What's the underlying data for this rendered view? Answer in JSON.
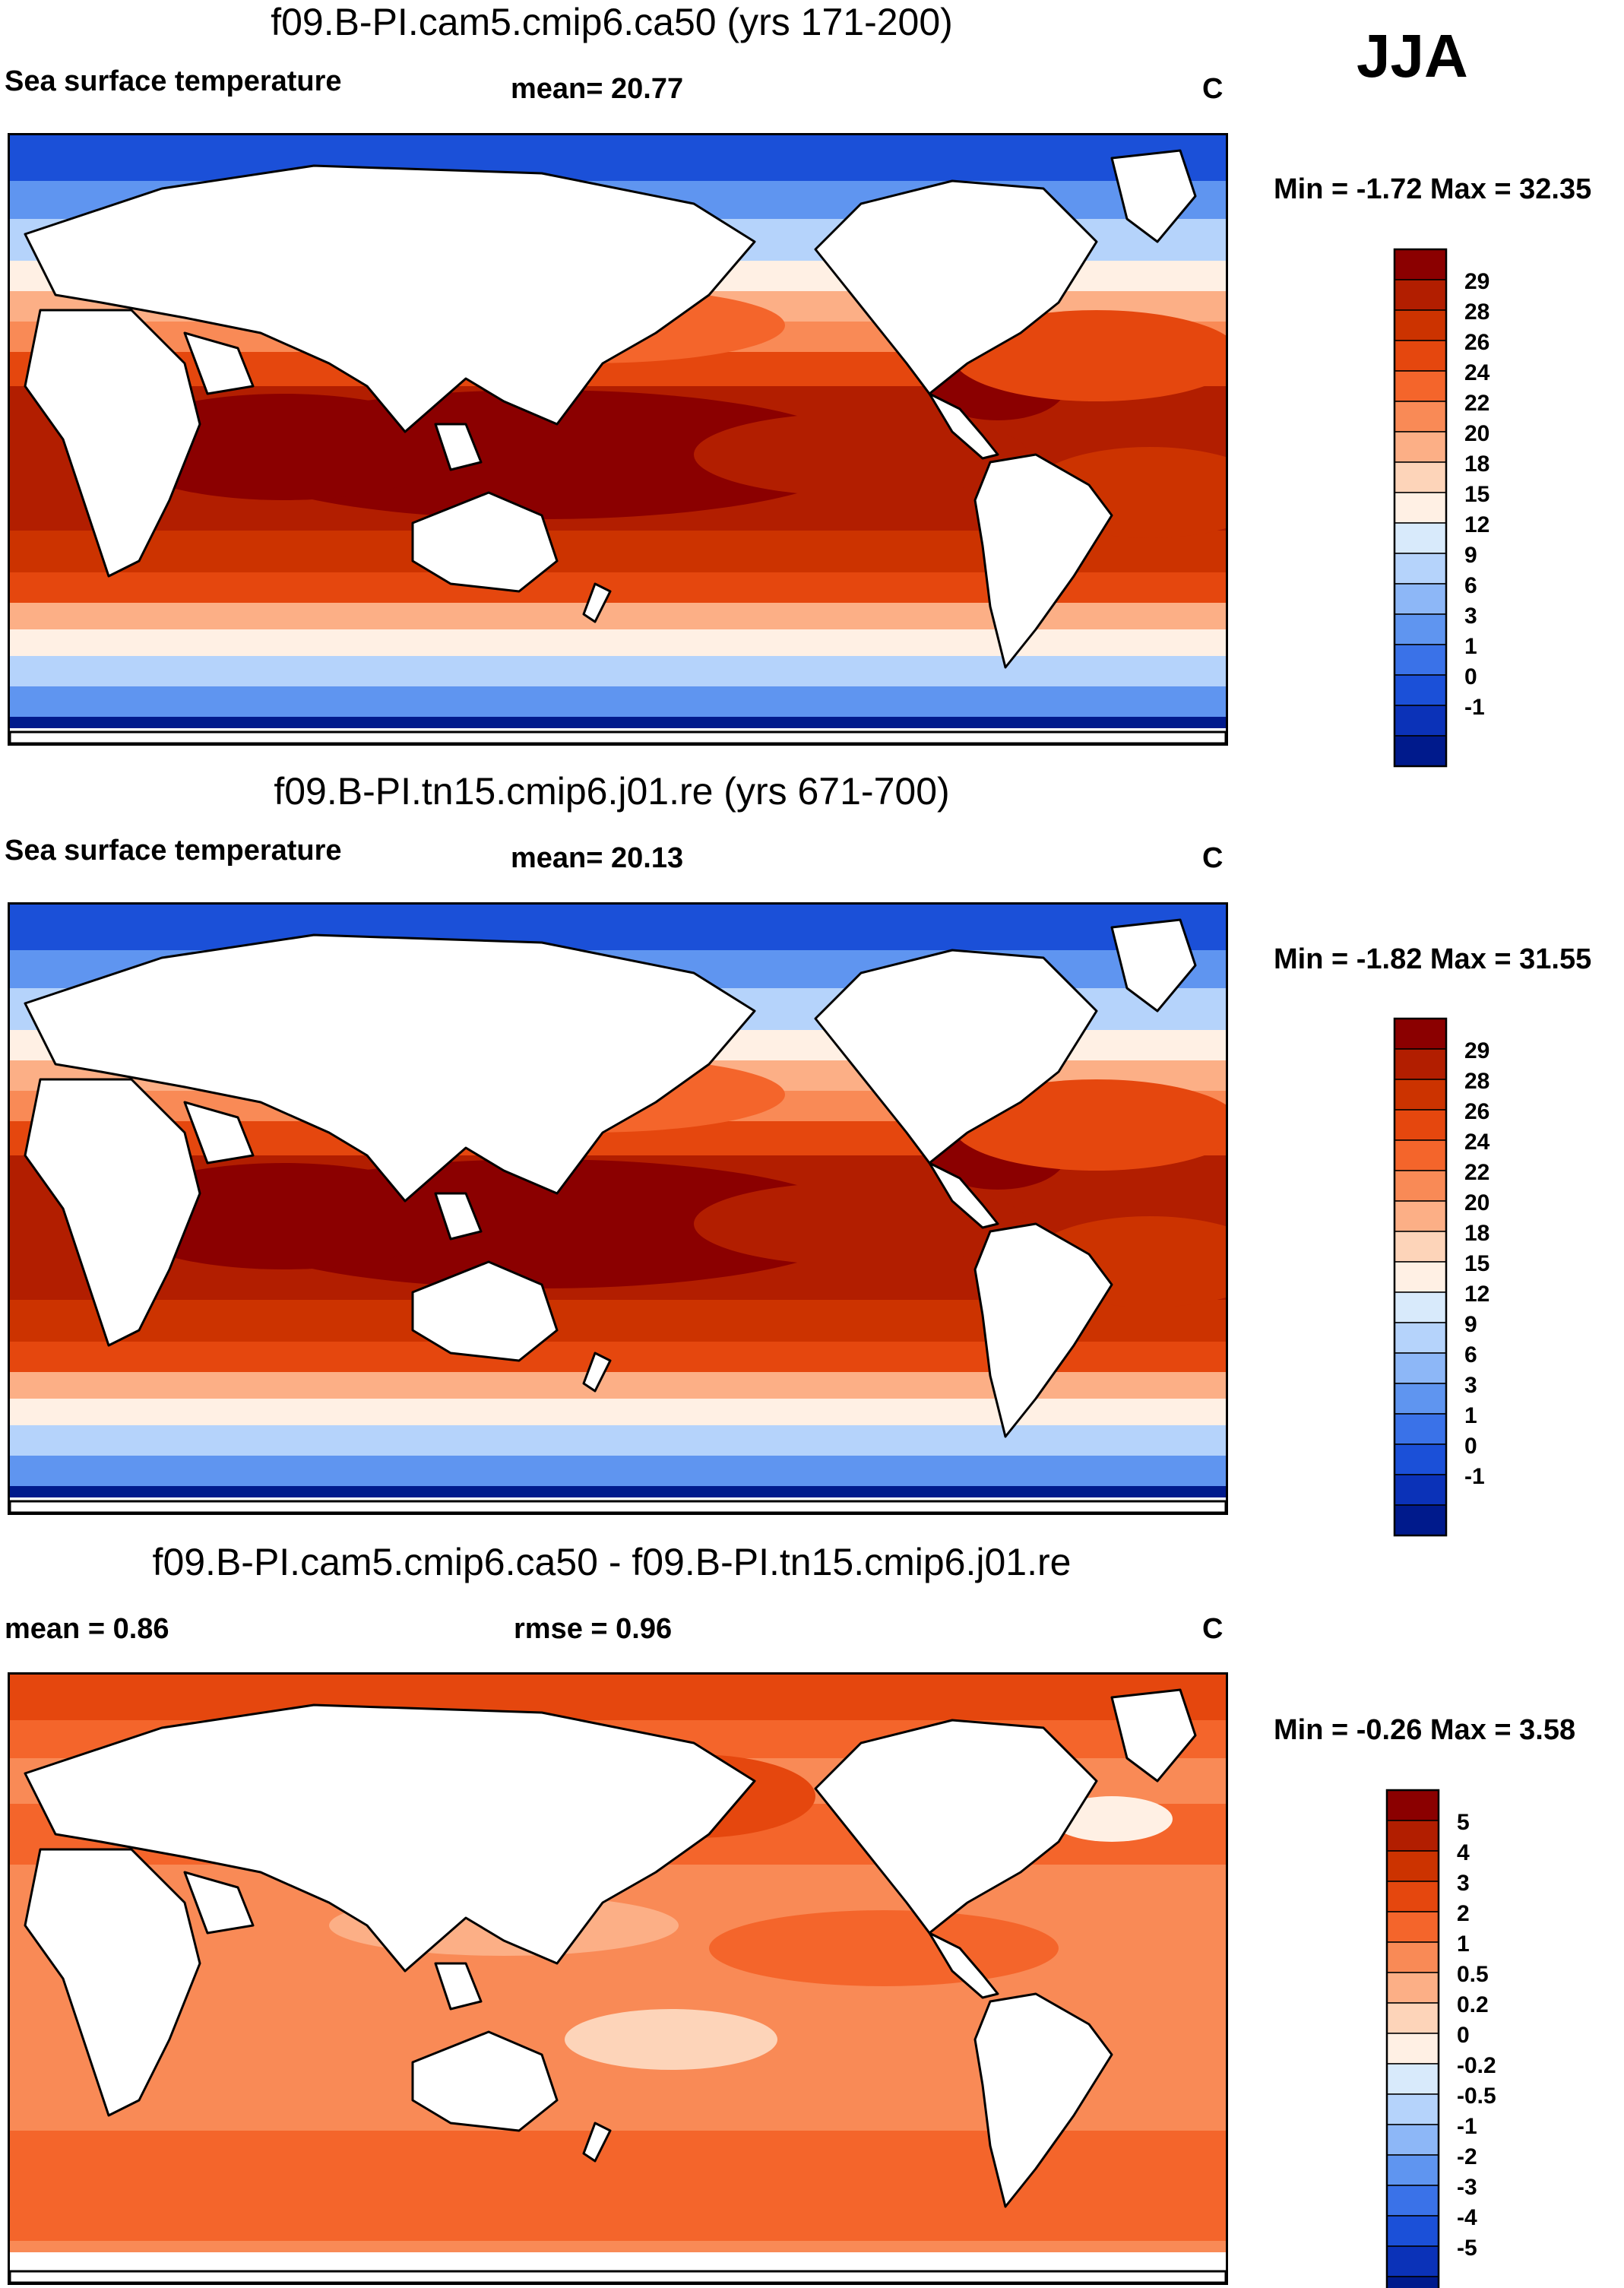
{
  "season": "JJA",
  "panels": [
    {
      "title": "f09.B-PI.cam5.cmip6.ca50 (yrs 171-200)",
      "left_label": "Sea surface temperature",
      "center_label": "mean=  20.77",
      "units": "C",
      "minmax": "Min =  -1.72 Max =  32.35",
      "kind": "abs",
      "colorbar": {
        "levels": [
          "29",
          "28",
          "26",
          "24",
          "22",
          "20",
          "18",
          "15",
          "12",
          "9",
          "6",
          "3",
          "1",
          "0",
          "-1"
        ],
        "colors": [
          "#8b0000",
          "#b21e00",
          "#cc3300",
          "#e5470e",
          "#f4652b",
          "#f98a56",
          "#fcaf86",
          "#fdd4b9",
          "#fff0e4",
          "#d8eafb",
          "#b5d3fb",
          "#8db7f7",
          "#5f95f0",
          "#3a72e8",
          "#1b50d8",
          "#0b32b8",
          "#001a8c"
        ]
      }
    },
    {
      "title": "f09.B-PI.tn15.cmip6.j01.re (yrs 671-700)",
      "left_label": "Sea surface temperature",
      "center_label": "mean=  20.13",
      "units": "C",
      "minmax": "Min =  -1.82 Max =  31.55",
      "kind": "abs",
      "colorbar": {
        "levels": [
          "29",
          "28",
          "26",
          "24",
          "22",
          "20",
          "18",
          "15",
          "12",
          "9",
          "6",
          "3",
          "1",
          "0",
          "-1"
        ],
        "colors": [
          "#8b0000",
          "#b21e00",
          "#cc3300",
          "#e5470e",
          "#f4652b",
          "#f98a56",
          "#fcaf86",
          "#fdd4b9",
          "#fff0e4",
          "#d8eafb",
          "#b5d3fb",
          "#8db7f7",
          "#5f95f0",
          "#3a72e8",
          "#1b50d8",
          "#0b32b8",
          "#001a8c"
        ]
      }
    },
    {
      "title": "f09.B-PI.cam5.cmip6.ca50 - f09.B-PI.tn15.cmip6.j01.re",
      "left_label": "mean =   0.86",
      "center_label": "rmse =   0.96",
      "units": "C",
      "minmax": "Min =  -0.26 Max =   3.58",
      "kind": "diff",
      "colorbar": {
        "levels": [
          "5",
          "4",
          "3",
          "2",
          "1",
          "0.5",
          "0.2",
          "0",
          "-0.2",
          "-0.5",
          "-1",
          "-2",
          "-3",
          "-4",
          "-5"
        ],
        "colors": [
          "#8b0000",
          "#b21e00",
          "#cc3300",
          "#e5470e",
          "#f4652b",
          "#f98a56",
          "#fcaf86",
          "#fdd4b9",
          "#fff0e4",
          "#d8eafb",
          "#b5d3fb",
          "#8db7f7",
          "#5f95f0",
          "#3a72e8",
          "#1b50d8",
          "#0b32b8",
          "#001a8c"
        ]
      }
    }
  ]
}
